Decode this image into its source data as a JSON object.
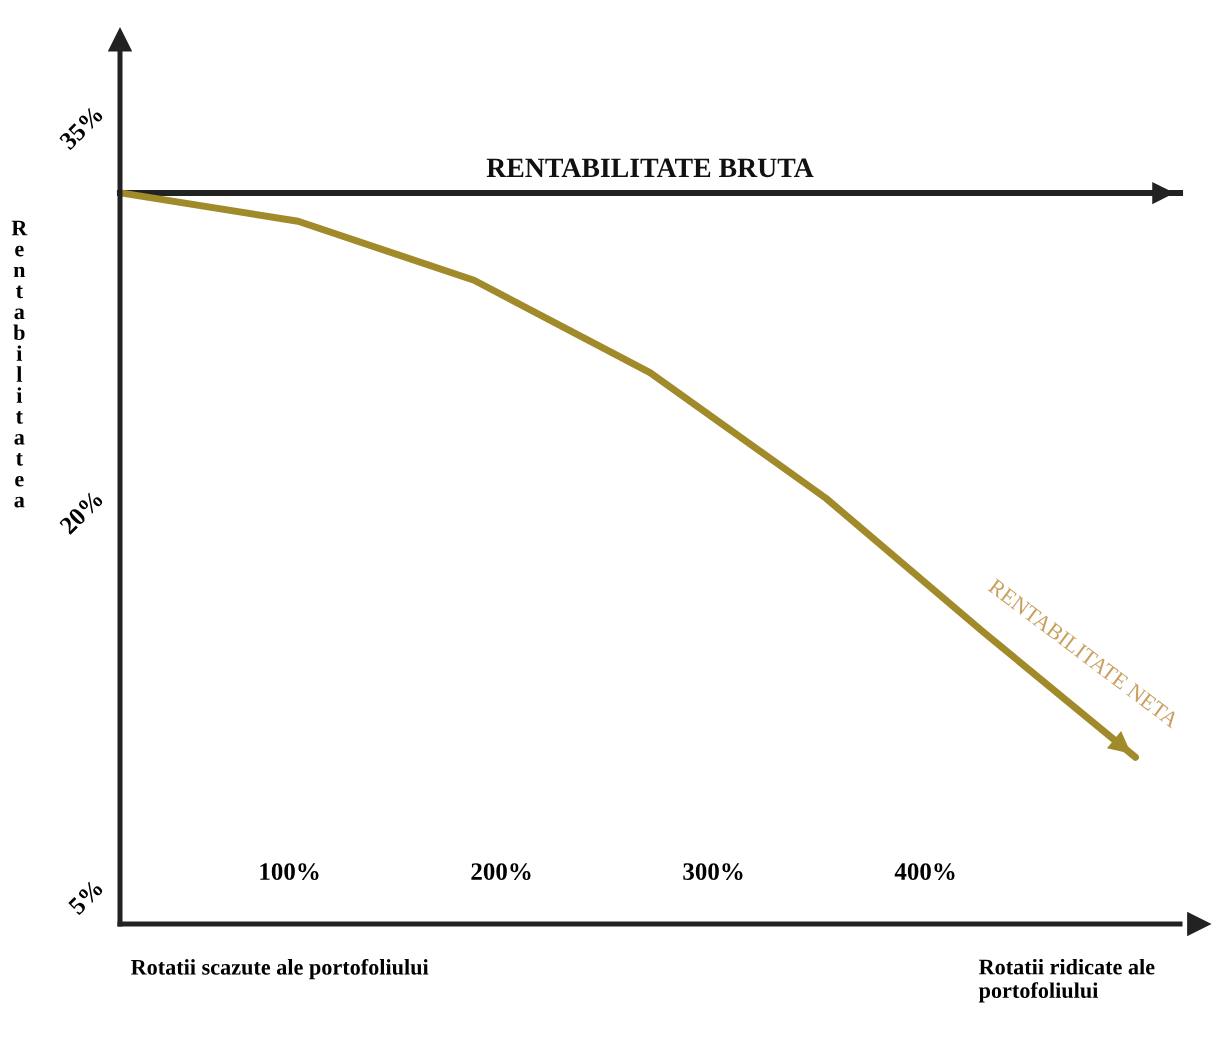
{
  "chart_data": {
    "type": "line",
    "ylabel": "Rentabilitatea",
    "xlim": [
      20,
      520
    ],
    "ylim": [
      4,
      38
    ],
    "xticks": [
      {
        "value": 100,
        "label": "100%"
      },
      {
        "value": 200,
        "label": "200%"
      },
      {
        "value": 300,
        "label": "300%"
      },
      {
        "value": 400,
        "label": "400%"
      }
    ],
    "yticks": [
      {
        "value": 5,
        "label": "5%"
      },
      {
        "value": 20,
        "label": "20%"
      },
      {
        "value": 35,
        "label": "35%"
      }
    ],
    "ref_lines": [
      {
        "axis": "y",
        "value": 32.5,
        "label": "RENTABILITATE BRUTA",
        "color": "#222222"
      }
    ],
    "series": [
      {
        "name": "RENTABILITATE NETA",
        "color": "#a08a2a",
        "x": [
          21,
          104,
          187,
          270,
          353,
          427,
          499
        ],
        "values": [
          32.5,
          31.4,
          29.1,
          25.5,
          20.6,
          15.4,
          10.5
        ]
      }
    ],
    "annotations": [
      "Rotatii scazute ale portofoliului",
      "Rotatii ridicate ale portofoliului"
    ],
    "grid": false,
    "legend": false,
    "marker": "none",
    "line_style": "solid"
  }
}
